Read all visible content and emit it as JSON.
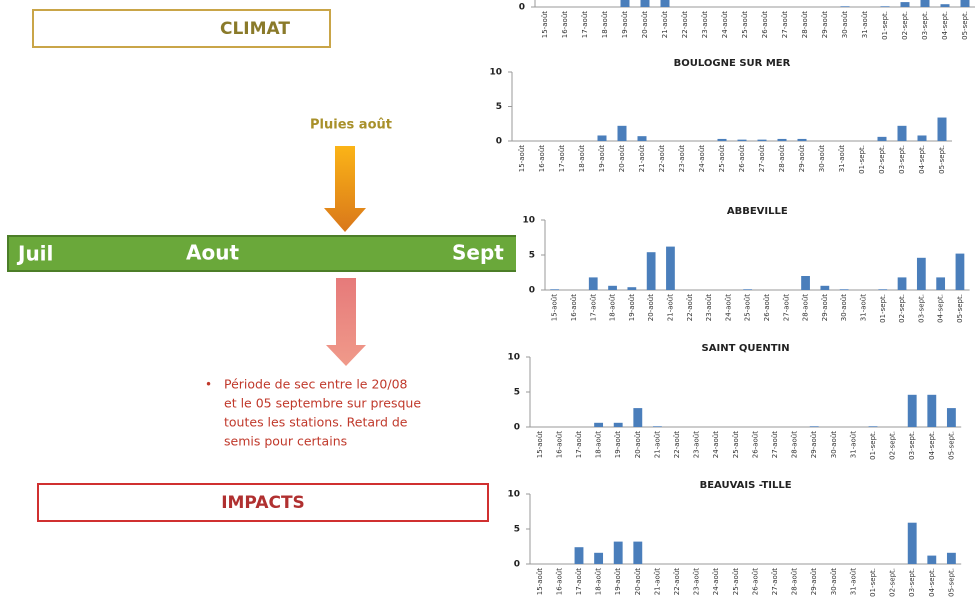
{
  "slide": {
    "climat": "CLIMAT",
    "pluies": "Pluies août",
    "timeline": [
      "Juil",
      "Aout",
      "Sept"
    ],
    "bullet": [
      "Période de sec entre le 20/08",
      "et le 05 septembre sur presque",
      "toutes les stations. Retard de",
      "semis pour certains"
    ],
    "impacts": "IMPACTS"
  },
  "chart_data": [
    {
      "type": "bar",
      "color": "#4a7ebb",
      "categories": [
        "15-août",
        "16-août",
        "17-août",
        "18-août",
        "19-août",
        "20-août",
        "21-août",
        "22-août",
        "23-août",
        "24-août",
        "25-août",
        "26-août",
        "27-août",
        "28-août",
        "29-août",
        "30-août",
        "31-août",
        "01-sept.",
        "02-sept.",
        "03-sept.",
        "04-sept.",
        "05-sept."
      ],
      "values": [
        0,
        0,
        0,
        0,
        1,
        2,
        1.5,
        0,
        0,
        0,
        0,
        0,
        0,
        0,
        0,
        0.1,
        0,
        0.1,
        0.7,
        1.5,
        0.4,
        2
      ],
      "ylim": [
        0,
        10
      ],
      "yticks": [
        0
      ]
    },
    {
      "type": "bar",
      "title": "BOULOGNE SUR MER",
      "color": "#4a7ebb",
      "categories": [
        "15-août",
        "16-août",
        "17-août",
        "18-août",
        "19-août",
        "20-août",
        "21-août",
        "22-août",
        "23-août",
        "24-août",
        "25-août",
        "26-août",
        "27-août",
        "28-août",
        "29-août",
        "30-août",
        "31-août",
        "01-sept.",
        "02-sept.",
        "03-sept.",
        "04-sept.",
        "05-sept."
      ],
      "values": [
        0,
        0,
        0,
        0,
        0.8,
        2.2,
        0.7,
        0,
        0,
        0,
        0.3,
        0.2,
        0.2,
        0.3,
        0.3,
        0,
        0,
        0,
        0.6,
        2.2,
        0.8,
        3.4
      ],
      "ylim": [
        0,
        10
      ],
      "yticks": [
        0,
        5,
        10
      ]
    },
    {
      "type": "bar",
      "title": "ABBEVILLE",
      "color": "#4a7ebb",
      "categories": [
        "15-août",
        "16-août",
        "17-août",
        "18-août",
        "19-août",
        "20-août",
        "21-août",
        "22-août",
        "23-août",
        "24-août",
        "25-août",
        "26-août",
        "27-août",
        "28-août",
        "29-août",
        "30-août",
        "31-août",
        "01-sept.",
        "02-sept.",
        "03-sept.",
        "04-sept.",
        "05-sept."
      ],
      "values": [
        0.1,
        0,
        1.8,
        0.6,
        0.4,
        5.4,
        6.2,
        0,
        0,
        0,
        0.1,
        0,
        0,
        2.0,
        0.6,
        0.1,
        0,
        0.1,
        1.8,
        4.6,
        1.8,
        5.2
      ],
      "ylim": [
        0,
        10
      ],
      "yticks": [
        0,
        5,
        10
      ]
    },
    {
      "type": "bar",
      "title": "SAINT QUENTIN",
      "color": "#4a7ebb",
      "categories": [
        "15-août",
        "16-août",
        "17-août",
        "18-août",
        "19-août",
        "20-août",
        "21-août",
        "22-août",
        "23-août",
        "24-août",
        "25-août",
        "26-août",
        "27-août",
        "28-août",
        "29-août",
        "30-août",
        "31-août",
        "01-sept.",
        "02-sept.",
        "03-sept.",
        "04-sept.",
        "05-sept."
      ],
      "values": [
        0,
        0,
        0,
        0.6,
        0.6,
        2.7,
        0.1,
        0,
        0,
        0,
        0,
        0,
        0,
        0,
        0.1,
        0,
        0,
        0.1,
        0,
        4.6,
        4.6,
        2.7
      ],
      "ylim": [
        0,
        10
      ],
      "yticks": [
        0,
        5,
        10
      ]
    },
    {
      "type": "bar",
      "title": "BEAUVAIS -TILLE",
      "color": "#4a7ebb",
      "categories": [
        "15-août",
        "16-août",
        "17-août",
        "18-août",
        "19-août",
        "20-août",
        "21-août",
        "22-août",
        "23-août",
        "24-août",
        "25-août",
        "26-août",
        "27-août",
        "28-août",
        "29-août",
        "30-août",
        "31-août",
        "01-sept.",
        "02-sept.",
        "03-sept.",
        "04-sept.",
        "05-sept."
      ],
      "values": [
        0,
        0,
        2.4,
        1.6,
        3.2,
        3.2,
        0,
        0,
        0,
        0,
        0,
        0,
        0,
        0,
        0,
        0,
        0,
        0,
        0,
        5.9,
        1.2,
        1.6
      ],
      "ylim": [
        0,
        10
      ],
      "yticks": [
        0,
        5,
        10
      ]
    }
  ]
}
